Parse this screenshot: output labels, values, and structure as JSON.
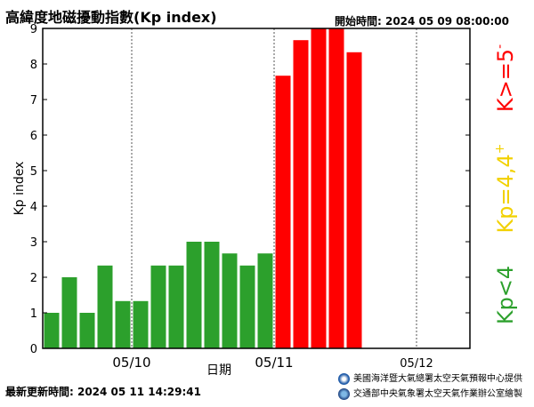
{
  "header": {
    "title": "高緯度地磁擾動指數(Kp index)",
    "start_time": "開始時間:  2024 05 09 08:00:00"
  },
  "footer": {
    "last_updated": "最新更新時間:  2024 05 11    14:29:41",
    "credit_noaa": "美國海洋暨大氣總署太空天氣預報中心提供",
    "credit_cwa": "交通部中央氣象署太空天氣作業辦公室繪製"
  },
  "legend": {
    "low": {
      "text": "Kp<4",
      "color": "#2ca02c"
    },
    "mid": {
      "text": "Kp=4,4",
      "sup": "+",
      "color": "#f2d100"
    },
    "high": {
      "text": "K>=5",
      "sup": "-",
      "color": "#ff0000"
    }
  },
  "chart_data": {
    "type": "bar",
    "title": "高緯度地磁擾動指數(Kp index)",
    "xlabel": "日期",
    "ylabel": "Kp index",
    "ylim": [
      0,
      9
    ],
    "yticks": [
      0,
      1,
      2,
      3,
      4,
      5,
      6,
      7,
      8,
      9
    ],
    "x_unit": "3-hour interval",
    "x_ticks": [
      {
        "label": "05/10",
        "index": 5
      },
      {
        "label": "05/11",
        "index": 13
      },
      {
        "label": "05/12",
        "index": 21
      }
    ],
    "total_slots": 24,
    "grid": "vertical dashed at day boundaries",
    "values": [
      1.0,
      2.0,
      1.0,
      2.33,
      1.33,
      1.33,
      2.33,
      2.33,
      3.0,
      3.0,
      2.67,
      2.33,
      2.67,
      7.67,
      8.67,
      9.0,
      9.0,
      8.33
    ],
    "colors": {
      "low": "#2ca02c",
      "high": "#ff0000"
    },
    "color_rule": "green if Kp<4, red if Kp>=5"
  }
}
